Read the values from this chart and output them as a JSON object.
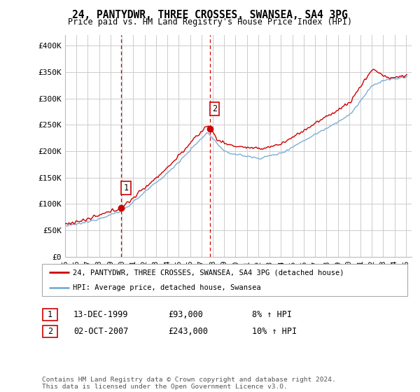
{
  "title": "24, PANTYDWR, THREE CROSSES, SWANSEA, SA4 3PG",
  "subtitle": "Price paid vs. HM Land Registry's House Price Index (HPI)",
  "ylim": [
    0,
    420000
  ],
  "yticks": [
    0,
    50000,
    100000,
    150000,
    200000,
    250000,
    300000,
    350000,
    400000
  ],
  "ytick_labels": [
    "£0",
    "£50K",
    "£100K",
    "£150K",
    "£200K",
    "£250K",
    "£300K",
    "£350K",
    "£400K"
  ],
  "xlim_start": 1995.0,
  "xlim_end": 2025.5,
  "line_color_property": "#cc0000",
  "line_color_hpi": "#7bafd4",
  "annotation1": {
    "x_year": 1999.96,
    "y": 93000,
    "label": "1"
  },
  "annotation2": {
    "x_year": 2007.75,
    "y": 243000,
    "label": "2"
  },
  "legend_line1": "24, PANTYDWR, THREE CROSSES, SWANSEA, SA4 3PG (detached house)",
  "legend_line2": "HPI: Average price, detached house, Swansea",
  "table_row1": [
    "1",
    "13-DEC-1999",
    "£93,000",
    "8% ↑ HPI"
  ],
  "table_row2": [
    "2",
    "02-OCT-2007",
    "£243,000",
    "10% ↑ HPI"
  ],
  "footnote": "Contains HM Land Registry data © Crown copyright and database right 2024.\nThis data is licensed under the Open Government Licence v3.0.",
  "background_color": "#ffffff",
  "plot_bg_color": "#ffffff",
  "grid_color": "#cccccc",
  "vline_color": "#cc0000"
}
